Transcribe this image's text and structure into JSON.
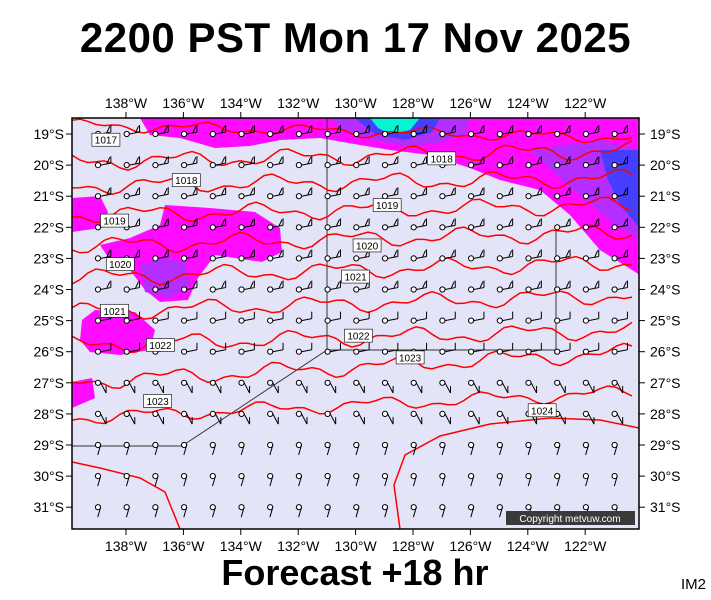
{
  "title": "2200 PST Mon 17 Nov 2025",
  "footer": "Forecast +18 hr",
  "code": "IM2",
  "copyright": "Copyright metvuw.com",
  "longitude_labels": [
    "138°W",
    "136°W",
    "134°W",
    "132°W",
    "130°W",
    "128°W",
    "126°W",
    "124°W",
    "122°W"
  ],
  "latitude_labels": [
    "19°S",
    "20°S",
    "21°S",
    "22°S",
    "23°S",
    "24°S",
    "25°S",
    "26°S",
    "27°S",
    "28°S",
    "29°S",
    "30°S",
    "31°S"
  ],
  "colors": {
    "ocean": "#e4e4f8",
    "isobar": "#ff0000",
    "rain_magenta": "#ff00ff",
    "rain_violet": "#b030ff",
    "rain_blue": "#4040ff",
    "rain_cyan": "#00ffd0"
  },
  "isobars": [
    {
      "label": "1017",
      "lon": -138.7,
      "lat": -19.2
    },
    {
      "label": "1018",
      "lon": -127.0,
      "lat": -19.8
    },
    {
      "label": "1018",
      "lon": -135.9,
      "lat": -20.5
    },
    {
      "label": "1019",
      "lon": -138.4,
      "lat": -21.8
    },
    {
      "label": "1019",
      "lon": -128.9,
      "lat": -21.3
    },
    {
      "label": "1020",
      "lon": -138.2,
      "lat": -23.2
    },
    {
      "label": "1020",
      "lon": -129.6,
      "lat": -22.6
    },
    {
      "label": "1021",
      "lon": -138.4,
      "lat": -24.7
    },
    {
      "label": "1021",
      "lon": -130.0,
      "lat": -23.6
    },
    {
      "label": "1022",
      "lon": -136.8,
      "lat": -25.8
    },
    {
      "label": "1022",
      "lon": -129.9,
      "lat": -25.5
    },
    {
      "label": "1023",
      "lon": -128.1,
      "lat": -26.2
    },
    {
      "label": "1023",
      "lon": -136.9,
      "lat": -27.6
    },
    {
      "label": "1024",
      "lon": -123.5,
      "lat": -27.9
    }
  ]
}
